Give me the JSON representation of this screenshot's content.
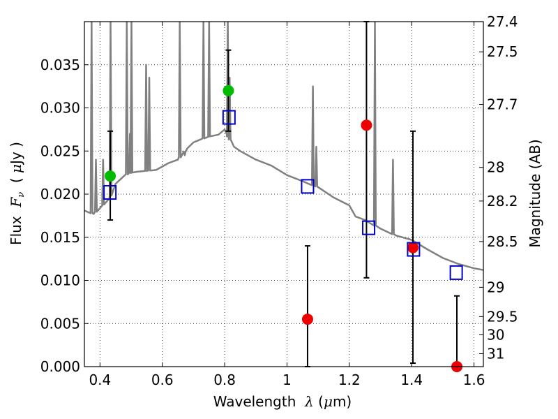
{
  "chart_data": {
    "type": "scatter",
    "title": "",
    "xlabel": "Wavelength  λ (μm)",
    "ylabel": "Flux  Fν  ( μJy )",
    "ylabel_right": "Magnitude (AB)",
    "xlim": [
      0.35,
      1.63
    ],
    "ylim": [
      0.0,
      0.04
    ],
    "grid": true,
    "x_ticks": [
      0.4,
      0.6,
      0.8,
      1.0,
      1.2,
      1.4,
      1.6
    ],
    "x_tick_labels": [
      "0.4",
      "0.6",
      "0.8",
      "1",
      "1.2",
      "1.4",
      "1.6"
    ],
    "y_ticks": [
      0.0,
      0.005,
      0.01,
      0.015,
      0.02,
      0.025,
      0.03,
      0.035
    ],
    "y_tick_labels": [
      "0.000",
      "0.005",
      "0.010",
      "0.015",
      "0.020",
      "0.025",
      "0.030",
      "0.035"
    ],
    "right_ticks": [
      {
        "label": "27.4",
        "flux": 0.04
      },
      {
        "label": "27.5",
        "flux": 0.0365
      },
      {
        "label": "27.7",
        "flux": 0.0304
      },
      {
        "label": "28",
        "flux": 0.0231
      },
      {
        "label": "28.2",
        "flux": 0.0192
      },
      {
        "label": "28.5",
        "flux": 0.0145
      },
      {
        "label": "29",
        "flux": 0.0092
      },
      {
        "label": "29.5",
        "flux": 0.0058
      },
      {
        "label": "30",
        "flux": 0.0037
      },
      {
        "label": "31",
        "flux": 0.0015
      }
    ],
    "colors": {
      "template": "#808080",
      "green": "#00bb00",
      "red": "#ee0000",
      "model_box": "#0000cc",
      "errorbar": "#000000"
    },
    "template_spectrum": {
      "x": [
        0.35,
        0.38,
        0.41,
        0.43,
        0.45,
        0.48,
        0.5,
        0.52,
        0.55,
        0.58,
        0.6,
        0.62,
        0.65,
        0.68,
        0.7,
        0.72,
        0.75,
        0.78,
        0.8,
        0.81,
        0.83,
        0.85,
        0.88,
        0.9,
        0.95,
        1.0,
        1.05,
        1.1,
        1.15,
        1.2,
        1.22,
        1.25,
        1.3,
        1.35,
        1.4,
        1.45,
        1.5,
        1.55,
        1.6,
        1.63
      ],
      "y": [
        0.0181,
        0.0177,
        0.0188,
        0.0195,
        0.0212,
        0.0222,
        0.0225,
        0.0226,
        0.0227,
        0.0228,
        0.0232,
        0.0236,
        0.024,
        0.0253,
        0.026,
        0.0263,
        0.0267,
        0.0269,
        0.0275,
        0.0267,
        0.0255,
        0.025,
        0.0244,
        0.024,
        0.0233,
        0.0222,
        0.0215,
        0.0208,
        0.0196,
        0.0187,
        0.0174,
        0.017,
        0.016,
        0.0152,
        0.0147,
        0.0136,
        0.0126,
        0.0119,
        0.0114,
        0.0112
      ],
      "emission_lines": [
        {
          "x": 0.373,
          "peak": 0.04
        },
        {
          "x": 0.387,
          "peak": 0.024
        },
        {
          "x": 0.41,
          "peak": 0.024
        },
        {
          "x": 0.434,
          "peak": 0.04
        },
        {
          "x": 0.486,
          "peak": 0.04
        },
        {
          "x": 0.496,
          "peak": 0.027
        },
        {
          "x": 0.501,
          "peak": 0.04
        },
        {
          "x": 0.548,
          "peak": 0.035
        },
        {
          "x": 0.558,
          "peak": 0.0335
        },
        {
          "x": 0.656,
          "peak": 0.04
        },
        {
          "x": 0.672,
          "peak": 0.0245
        },
        {
          "x": 0.732,
          "peak": 0.04
        },
        {
          "x": 0.75,
          "peak": 0.04
        },
        {
          "x": 0.81,
          "peak": 0.04
        },
        {
          "x": 0.816,
          "peak": 0.0335
        },
        {
          "x": 1.083,
          "peak": 0.0325
        },
        {
          "x": 1.094,
          "peak": 0.0255
        },
        {
          "x": 1.282,
          "peak": 0.04
        },
        {
          "x": 1.34,
          "peak": 0.024
        }
      ]
    },
    "series": [
      {
        "marker": "circle",
        "color": "green",
        "points": [
          {
            "x": 0.433,
            "y": 0.0221,
            "err_low": 0.017,
            "err_high": 0.0273
          },
          {
            "x": 0.812,
            "y": 0.032,
            "err_low": 0.0273,
            "err_high": 0.0367
          }
        ]
      },
      {
        "marker": "circle",
        "color": "red",
        "points": [
          {
            "x": 1.066,
            "y": 0.0055,
            "err_low": 0.0,
            "err_high": 0.014
          },
          {
            "x": 1.255,
            "y": 0.028,
            "err_low": 0.0103,
            "err_high": 0.04
          },
          {
            "x": 1.404,
            "y": 0.0138,
            "err_low": 0.0004,
            "err_high": 0.0273
          },
          {
            "x": 1.545,
            "y": 0.0,
            "err_low": 0.0,
            "err_high": 0.0082
          }
        ]
      },
      {
        "marker": "open-square",
        "color": "model_box",
        "points": [
          {
            "x": 0.432,
            "y": 0.0202
          },
          {
            "x": 0.814,
            "y": 0.0289
          },
          {
            "x": 1.066,
            "y": 0.0209
          },
          {
            "x": 1.262,
            "y": 0.0161
          },
          {
            "x": 1.406,
            "y": 0.0136
          },
          {
            "x": 1.543,
            "y": 0.0109
          }
        ]
      }
    ]
  }
}
